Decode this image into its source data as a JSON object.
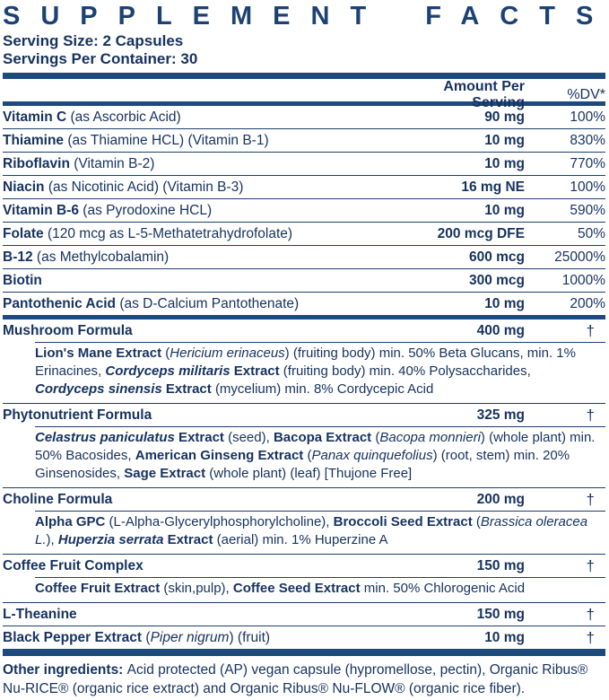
{
  "title": "SUPPLEMENT FACTS",
  "serving": {
    "size": "Serving Size: 2 Capsules",
    "per_container": "Servings Per Container: 30"
  },
  "columns": {
    "amount": "Amount Per Serving",
    "dv": "%DV*"
  },
  "colors": {
    "text_navy": "#16325F",
    "bar_navy": "#1C4A7C",
    "rule_navy": "#1B3F6E"
  },
  "footnote_symbol": "†",
  "table": {
    "rows": [
      {
        "name": [
          [
            "Vitamin C ",
            "b"
          ],
          [
            "(as Ascorbic Acid)",
            ""
          ]
        ],
        "amount": "90 mg",
        "dv": "100%"
      },
      {
        "name": [
          [
            "Thiamine ",
            "b"
          ],
          [
            "(as Thiamine HCL) (Vitamin B-1)",
            ""
          ]
        ],
        "amount": "10 mg",
        "dv": "830%"
      },
      {
        "name": [
          [
            "Riboflavin ",
            "b"
          ],
          [
            "(Vitamin B-2)",
            ""
          ]
        ],
        "amount": "10 mg",
        "dv": "770%"
      },
      {
        "name": [
          [
            "Niacin ",
            "b"
          ],
          [
            "(as Nicotinic Acid) (Vitamin B-3)",
            ""
          ]
        ],
        "amount": "16 mg NE",
        "dv": "100%"
      },
      {
        "name": [
          [
            "Vitamin B-6 ",
            "b"
          ],
          [
            "(as Pyrodoxine HCL)",
            ""
          ]
        ],
        "amount": "10 mg",
        "dv": "590%"
      },
      {
        "name": [
          [
            "Folate ",
            "b"
          ],
          [
            "(120 mcg as L-5-Methatetrahydrofolate)",
            ""
          ]
        ],
        "amount": "200 mcg DFE",
        "dv": "50%"
      },
      {
        "name": [
          [
            "B-12 ",
            "b"
          ],
          [
            "(as Methylcobalamin)",
            ""
          ]
        ],
        "amount": "600 mcg",
        "dv": "25000%"
      },
      {
        "name": [
          [
            "Biotin",
            "b"
          ]
        ],
        "amount": "300 mcg",
        "dv": "1000%"
      },
      {
        "name": [
          [
            "Pantothenic Acid ",
            "b"
          ],
          [
            "(as D-Calcium Pantothenate)",
            ""
          ]
        ],
        "amount": "10 mg",
        "dv": "200%",
        "divider_after": "thick"
      },
      {
        "name": [
          [
            "Mushroom Formula",
            "b"
          ]
        ],
        "amount": "400 mg",
        "dv": "†",
        "sub": [
          [
            "Lion's Mane Extract ",
            "b"
          ],
          [
            "(",
            ""
          ],
          [
            "Hericium erinaceus",
            "i"
          ],
          [
            ") (fruiting body) min. 50% Beta Glucans, min. 1% Erinacines, ",
            ""
          ],
          [
            "Cordyceps militaris",
            "bi"
          ],
          [
            " Extract ",
            "b"
          ],
          [
            "(fruiting body) min. 40% Polysaccharides, ",
            ""
          ],
          [
            "Cordyceps sinensis",
            "bi"
          ],
          [
            " Extract ",
            "b"
          ],
          [
            "(mycelium) min. 8% Cordycepic Acid",
            ""
          ]
        ]
      },
      {
        "name": [
          [
            "Phytonutrient Formula",
            "b"
          ]
        ],
        "amount": "325 mg",
        "dv": "†",
        "sub": [
          [
            "Celastrus paniculatus",
            "bi"
          ],
          [
            " Extract ",
            "b"
          ],
          [
            "(seed), ",
            ""
          ],
          [
            "Bacopa Extract ",
            "b"
          ],
          [
            "(",
            ""
          ],
          [
            "Bacopa monnieri",
            "i"
          ],
          [
            ") (whole plant) min. 50% Bacosides, ",
            ""
          ],
          [
            "American Ginseng Extract ",
            "b"
          ],
          [
            "(",
            ""
          ],
          [
            "Panax quinquefolius",
            "i"
          ],
          [
            ") (root, stem) min. 20% Ginsenosides, ",
            ""
          ],
          [
            "Sage Extract ",
            "b"
          ],
          [
            "(whole plant) (leaf) [Thujone Free]",
            ""
          ]
        ]
      },
      {
        "name": [
          [
            "Choline Formula",
            "b"
          ]
        ],
        "amount": "200 mg",
        "dv": "†",
        "sub": [
          [
            "Alpha GPC ",
            "b"
          ],
          [
            "(L-Alpha-Glycerylphosphorylcholine), ",
            ""
          ],
          [
            "Broccoli Seed Extract ",
            "b"
          ],
          [
            "(",
            ""
          ],
          [
            "Brassica oleracea L.",
            "i"
          ],
          [
            "), ",
            ""
          ],
          [
            "Huperzia serrata",
            "bi"
          ],
          [
            " Extract ",
            "b"
          ],
          [
            "(aerial) min. 1% Huperzine A",
            ""
          ]
        ]
      },
      {
        "name": [
          [
            "Coffee Fruit Complex",
            "b"
          ]
        ],
        "amount": "150 mg",
        "dv": "†",
        "sub": [
          [
            "Coffee Fruit Extract ",
            "b"
          ],
          [
            "(skin,pulp), ",
            ""
          ],
          [
            "Coffee Seed Extract ",
            "b"
          ],
          [
            "min. 50% Chlorogenic Acid",
            ""
          ]
        ]
      },
      {
        "name": [
          [
            "L-Theanine",
            "b"
          ]
        ],
        "amount": "150 mg",
        "dv": "†"
      },
      {
        "name": [
          [
            "Black Pepper Extract ",
            "b"
          ],
          [
            "(",
            ""
          ],
          [
            "Piper nigrum",
            "i"
          ],
          [
            ") (fruit)",
            ""
          ]
        ],
        "amount": "10 mg",
        "dv": "†",
        "divider_after": "thick"
      }
    ]
  },
  "footer": {
    "segments": [
      [
        "Other ingredients: ",
        "b"
      ],
      [
        "Acid protected (AP) vegan capsule (hypromellose, pectin), Organic Ribus® Nu-RICE® (organic rice extract) and Organic Ribus® Nu-FLOW® (organic rice fiber).",
        ""
      ]
    ]
  }
}
